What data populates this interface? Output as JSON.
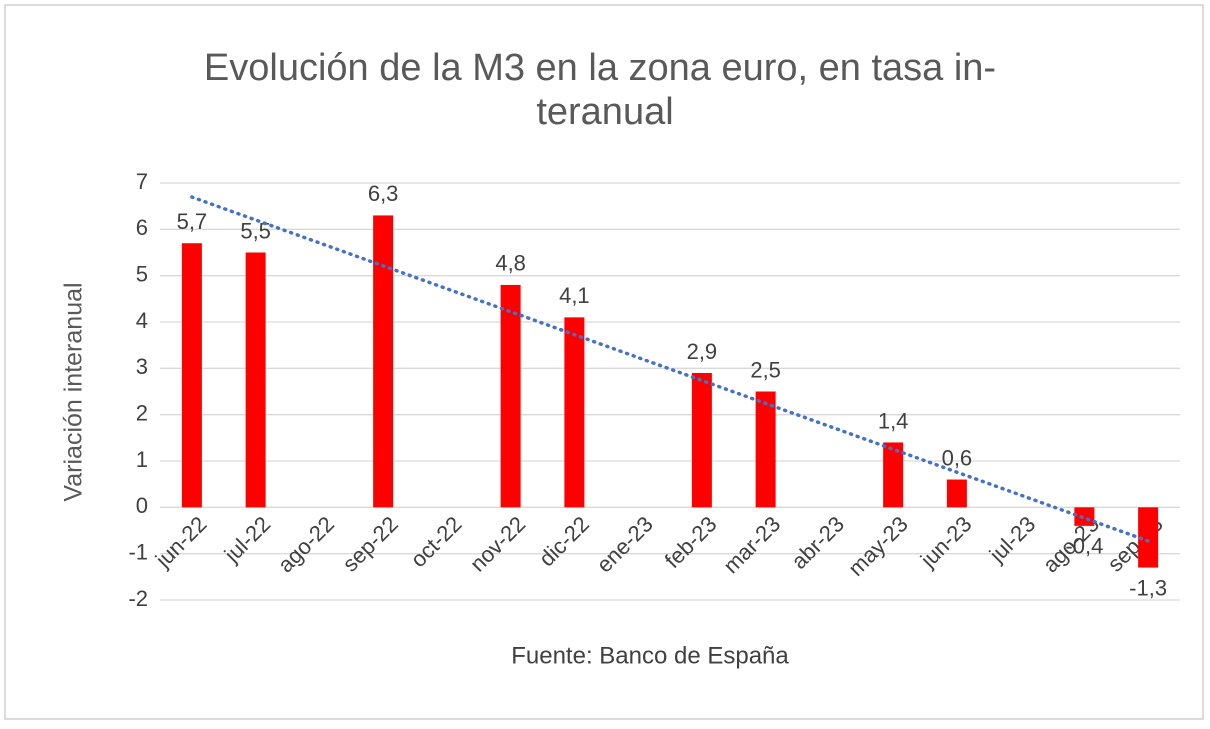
{
  "chart_data": {
    "type": "bar",
    "title": [
      "Evolución de la M3 en la zona euro, en tasa in-",
      "teranual"
    ],
    "y_label": "Variación interanual",
    "source": "Fuente: Banco de España",
    "categories": [
      "jun-22",
      "jul-22",
      "ago-22",
      "sep-22",
      "oct-22",
      "nov-22",
      "dic-22",
      "ene-23",
      "feb-23",
      "mar-23",
      "abr-23",
      "may-23",
      "jun-23",
      "jul-23",
      "ago-23",
      "sep-23"
    ],
    "values": [
      5.7,
      5.5,
      null,
      6.3,
      null,
      4.8,
      4.1,
      null,
      2.9,
      2.5,
      null,
      1.4,
      0.6,
      null,
      -0.4,
      -1.3
    ],
    "value_labels": [
      "5,7",
      "5,5",
      null,
      "6,3",
      null,
      "4,8",
      "4,1",
      null,
      "2,9",
      "2,5",
      null,
      "1,4",
      "0,6",
      null,
      "-0,4",
      "-1,3"
    ],
    "color": "#ff0000",
    "trendline": "linear",
    "trendline_color": "#4472c4",
    "ylim": [
      -2,
      7
    ],
    "yticks": [
      -2,
      -1,
      0,
      1,
      2,
      3,
      4,
      5,
      6,
      7
    ],
    "grid": true
  }
}
